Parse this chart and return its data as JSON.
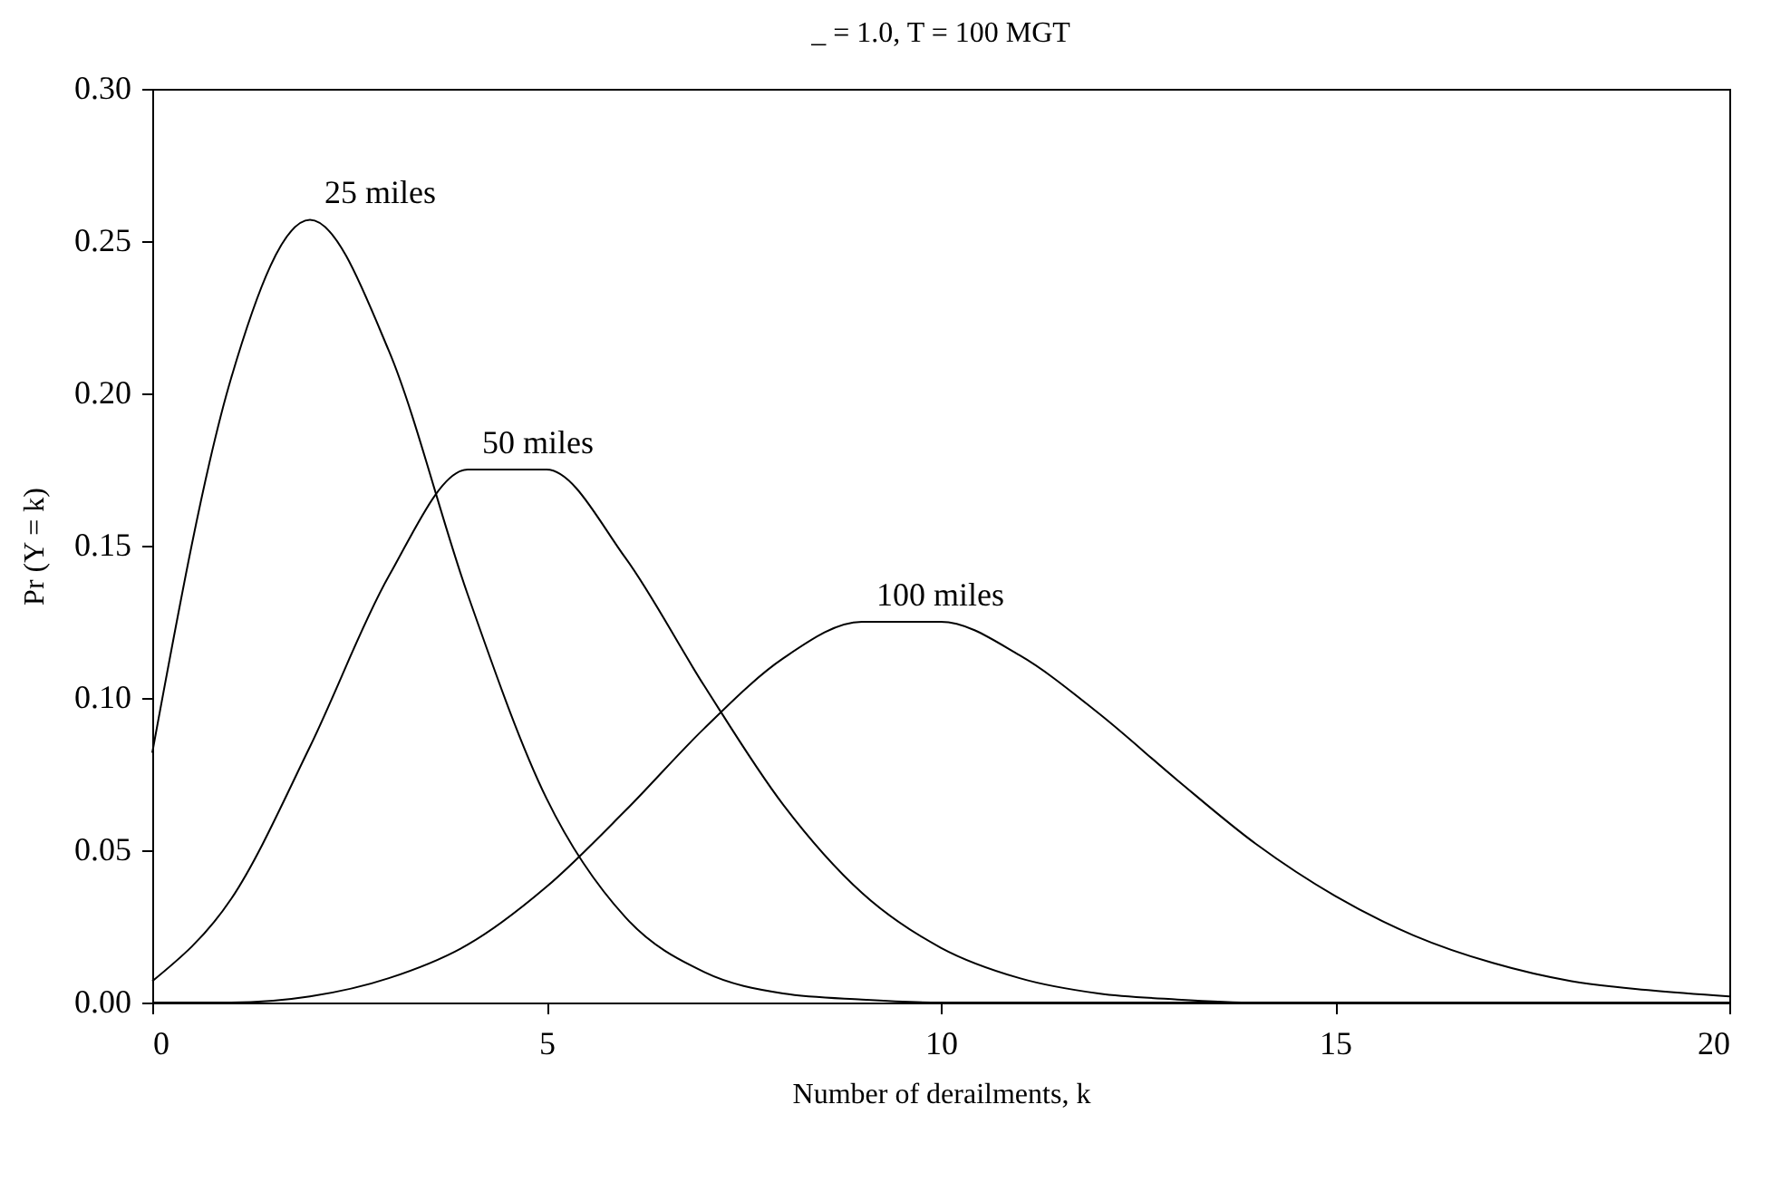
{
  "chart_data": {
    "type": "line",
    "title": "_ = 1.0, T = 100 MGT",
    "xlabel": "Number of derailments, k",
    "ylabel": "Pr (Y = k)",
    "x": [
      0,
      1,
      2,
      3,
      4,
      5,
      6,
      7,
      8,
      9,
      10,
      11,
      12,
      13,
      14,
      15,
      16,
      17,
      18,
      19,
      20
    ],
    "series": [
      {
        "name": "25 miles",
        "color": "#000000",
        "values": [
          0.082,
          0.205,
          0.257,
          0.214,
          0.134,
          0.067,
          0.028,
          0.01,
          0.003,
          0.001,
          0.0,
          0.0,
          0.0,
          0.0,
          0.0,
          0.0,
          0.0,
          0.0,
          0.0,
          0.0,
          0.0
        ]
      },
      {
        "name": "50 miles",
        "color": "#000000",
        "values": [
          0.007,
          0.034,
          0.084,
          0.14,
          0.175,
          0.175,
          0.146,
          0.104,
          0.065,
          0.036,
          0.018,
          0.008,
          0.003,
          0.001,
          0.0,
          0.0,
          0.0,
          0.0,
          0.0,
          0.0,
          0.0
        ]
      },
      {
        "name": "100 miles",
        "color": "#000000",
        "values": [
          0.0,
          0.0,
          0.002,
          0.008,
          0.019,
          0.038,
          0.063,
          0.09,
          0.113,
          0.125,
          0.125,
          0.114,
          0.095,
          0.073,
          0.052,
          0.035,
          0.022,
          0.013,
          0.007,
          0.004,
          0.002
        ]
      }
    ],
    "xlim": [
      0,
      20
    ],
    "xticks": [
      0,
      5,
      10,
      15,
      20
    ],
    "ylim": [
      0,
      0.3
    ],
    "yticks": [
      {
        "value": 0,
        "label": "0.00"
      },
      {
        "value": 0.05,
        "label": "0.05"
      },
      {
        "value": 0.1,
        "label": "0.10"
      },
      {
        "value": 0.15,
        "label": "0.15"
      },
      {
        "value": 0.2,
        "label": "0.20"
      },
      {
        "value": 0.25,
        "label": "0.25"
      },
      {
        "value": 0.3,
        "label": "0.30"
      }
    ],
    "grid": false,
    "legend": false,
    "marker": "none",
    "line_style": "solid"
  }
}
